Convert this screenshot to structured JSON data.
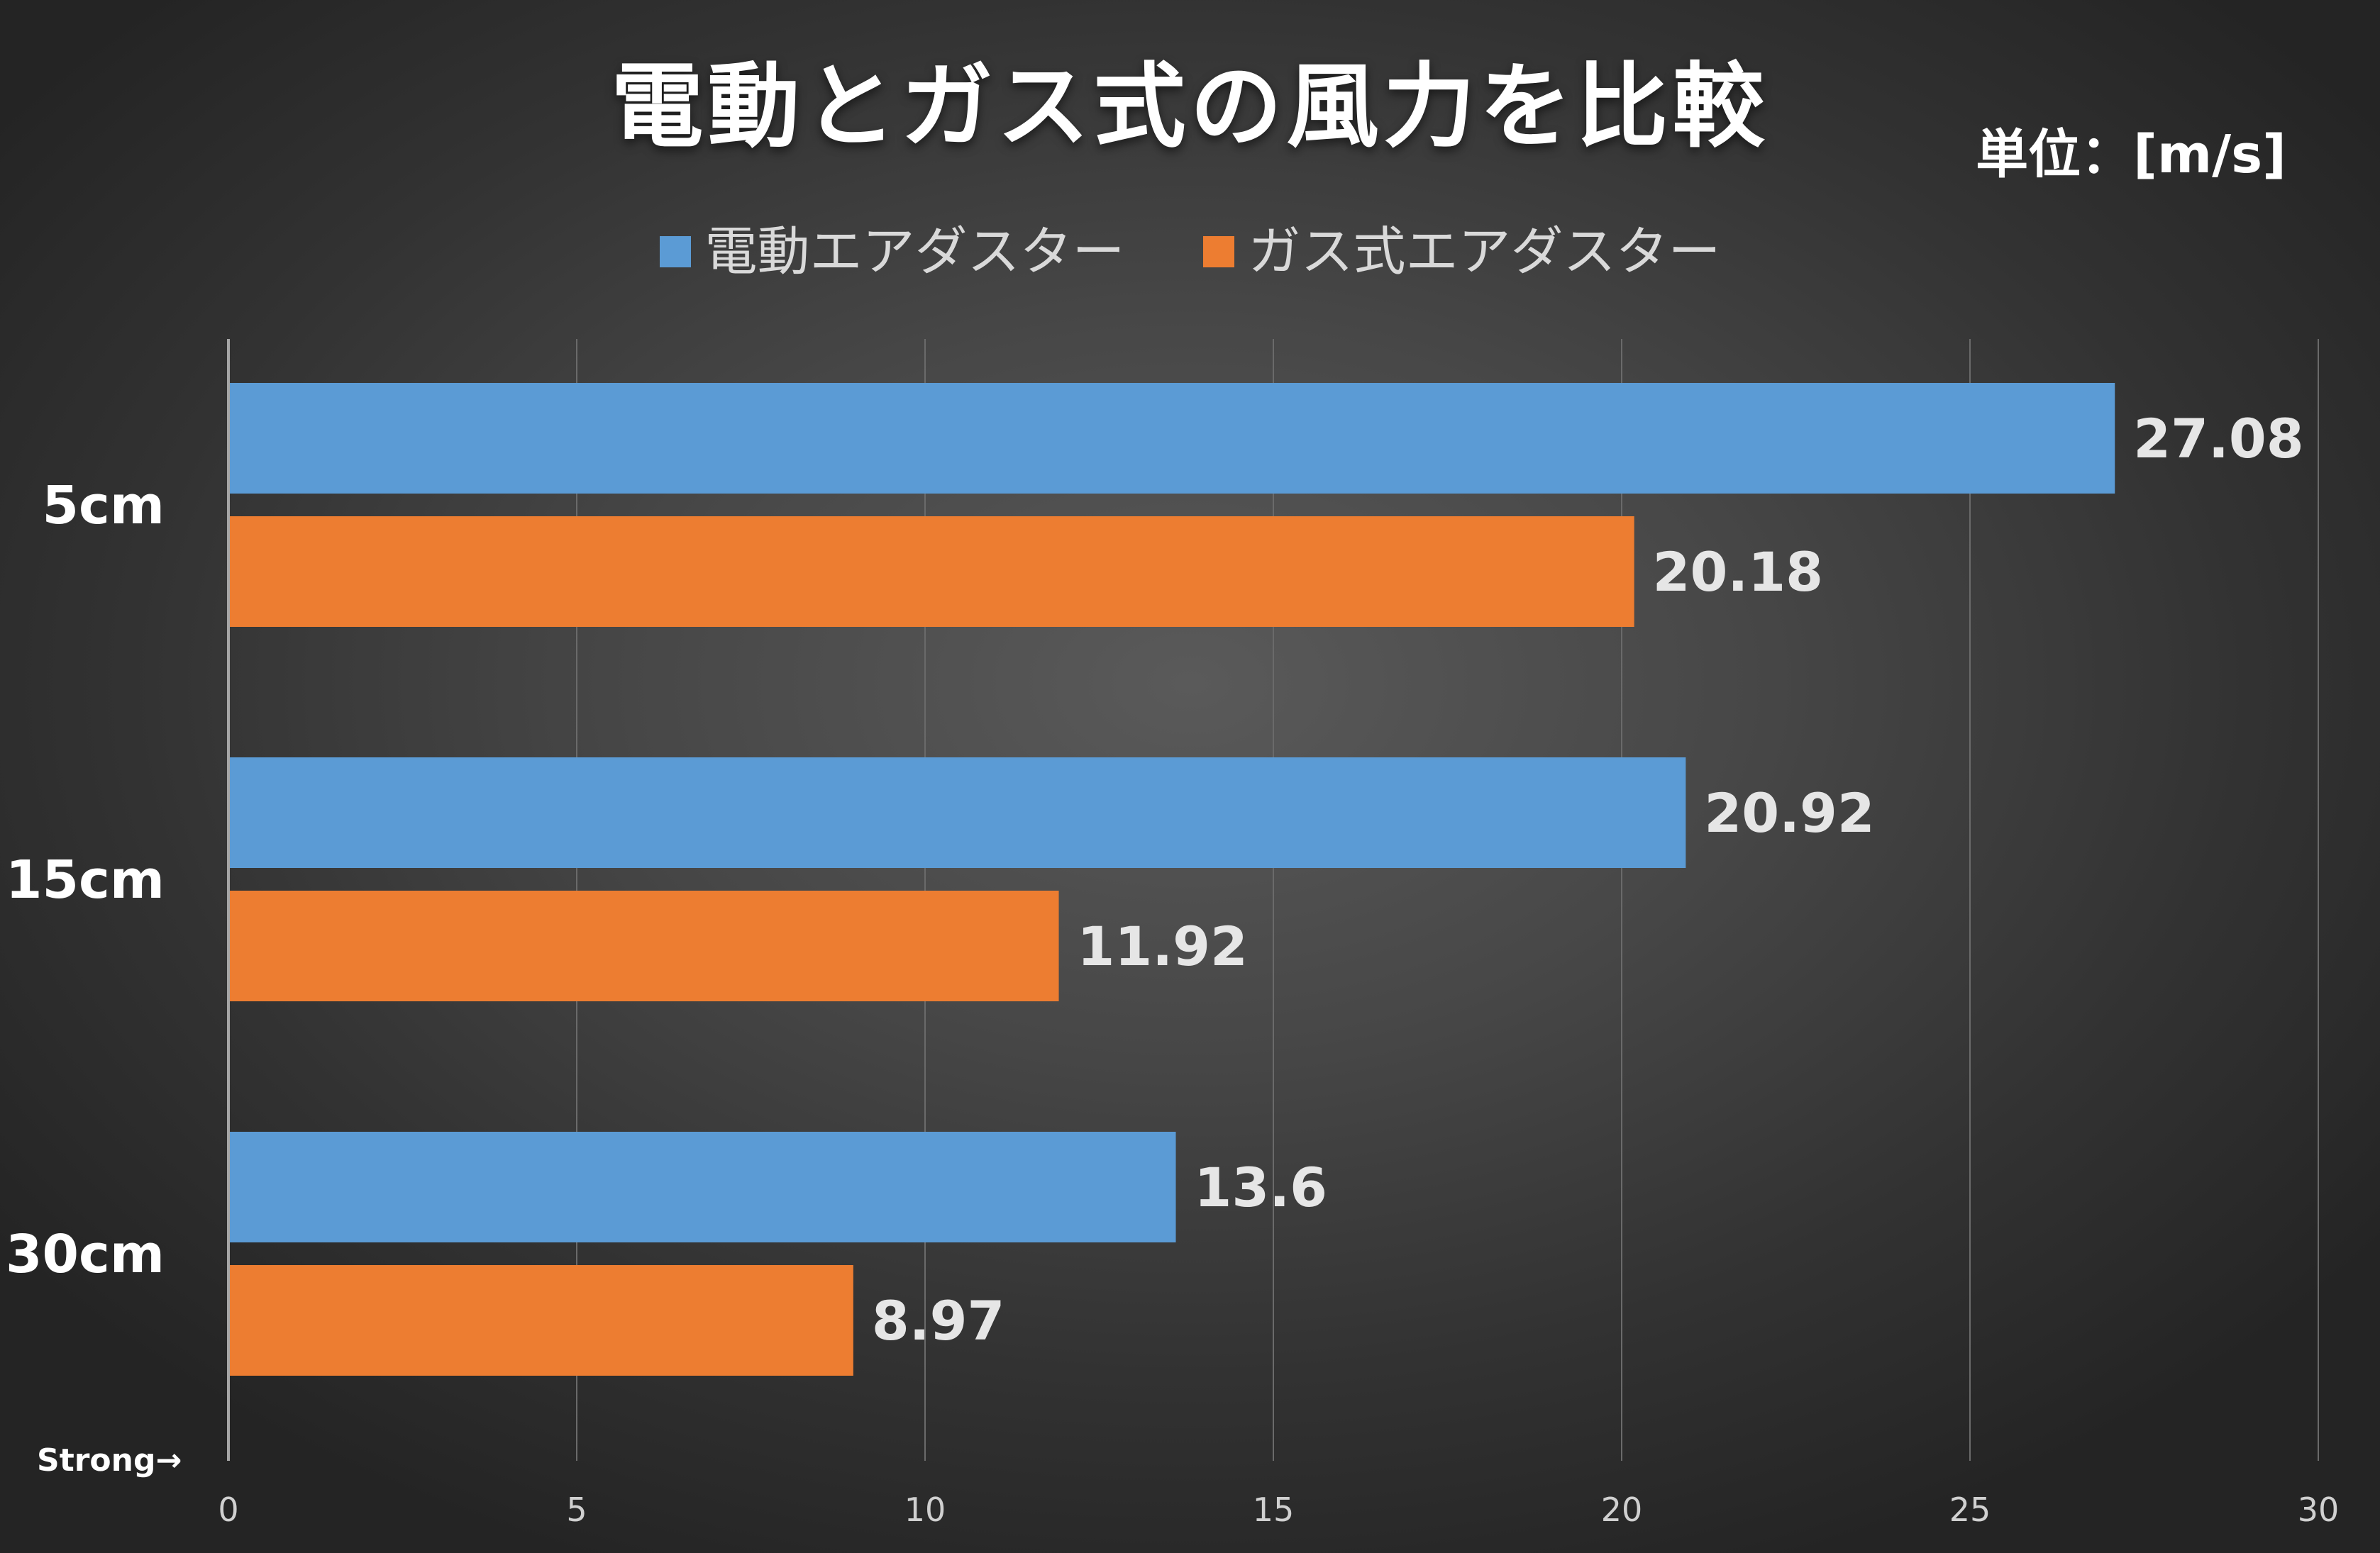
{
  "title": "電動とガス式の風力を比較",
  "unit": "単位：[m/s]",
  "footnote": "Strong→",
  "colors": {
    "electric": "#5b9bd5",
    "gas": "#ed7d31"
  },
  "legend": [
    {
      "label": "電動エアダスター",
      "color": "#5b9bd5"
    },
    {
      "label": "ガス式エアダスター",
      "color": "#ed7d31"
    }
  ],
  "chart_data": {
    "type": "bar",
    "orientation": "horizontal",
    "title": "電動とガス式の風力を比較",
    "categories": [
      "5cm",
      "15cm",
      "30cm"
    ],
    "series": [
      {
        "name": "電動エアダスター",
        "color": "#5b9bd5",
        "values": [
          27.08,
          20.92,
          13.6
        ]
      },
      {
        "name": "ガス式エアダスター",
        "color": "#ed7d31",
        "values": [
          20.18,
          11.92,
          8.97
        ]
      }
    ],
    "data_labels": {
      "電動エアダスター": [
        "27.08",
        "20.92",
        "13.6"
      ],
      "ガス式エアダスター": [
        "20.18",
        "11.92",
        "8.97"
      ]
    },
    "xlim": [
      0,
      30
    ],
    "x_ticks": [
      0,
      5,
      10,
      15,
      20,
      25,
      30
    ],
    "grid": true,
    "legend_position": "top"
  }
}
